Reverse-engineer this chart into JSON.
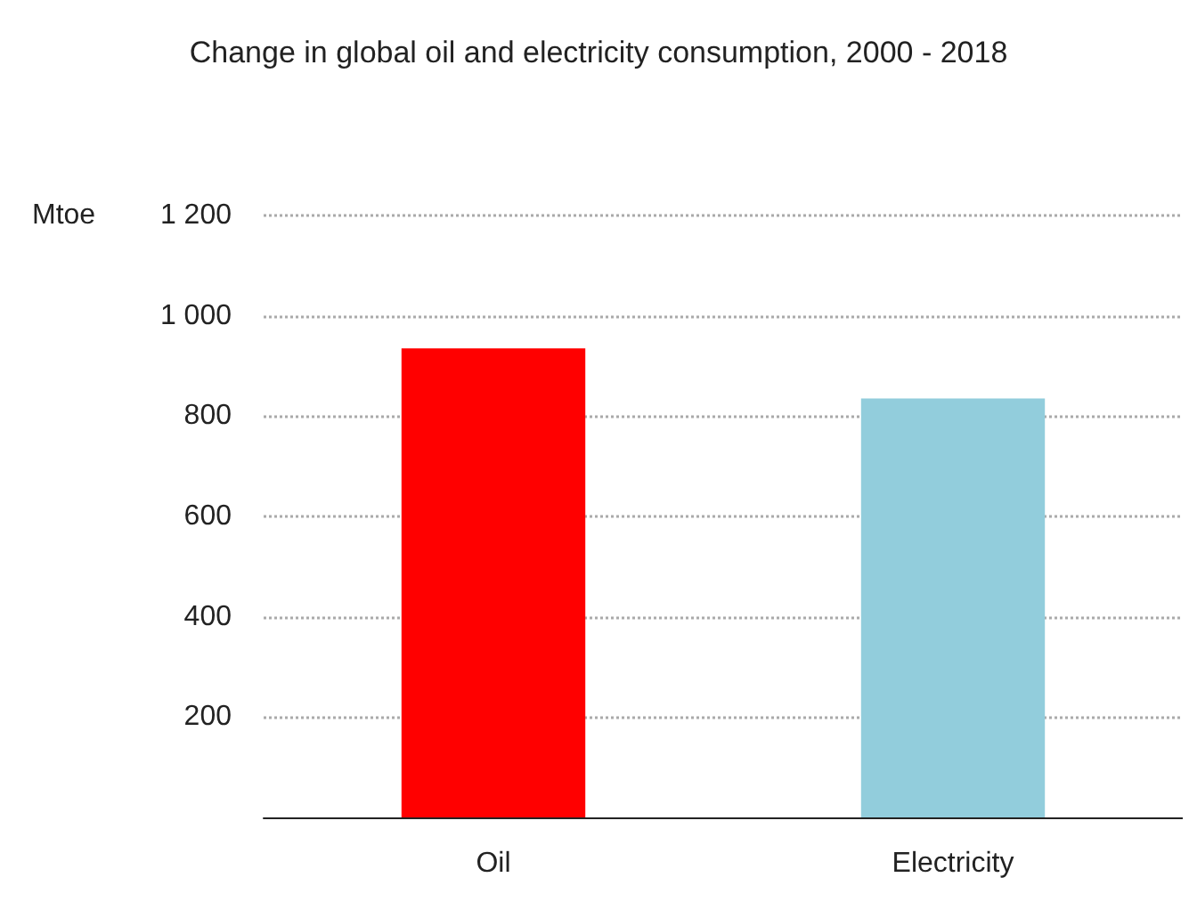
{
  "chart_data": {
    "type": "bar",
    "title": "Change in global oil and electricity consumption, 2000 - 2018",
    "ylabel": "Mtoe",
    "categories": [
      "Oil",
      "Electricity"
    ],
    "values": [
      935,
      835
    ],
    "colors": [
      "#ff0000",
      "#92cddc"
    ],
    "ylim": [
      0,
      1200
    ],
    "yticks": [
      {
        "value": 200,
        "label": "200"
      },
      {
        "value": 400,
        "label": "400"
      },
      {
        "value": 600,
        "label": "600"
      },
      {
        "value": 800,
        "label": "800"
      },
      {
        "value": 1000,
        "label": "1 000"
      },
      {
        "value": 1200,
        "label": "1 200"
      }
    ],
    "grid": "y"
  }
}
